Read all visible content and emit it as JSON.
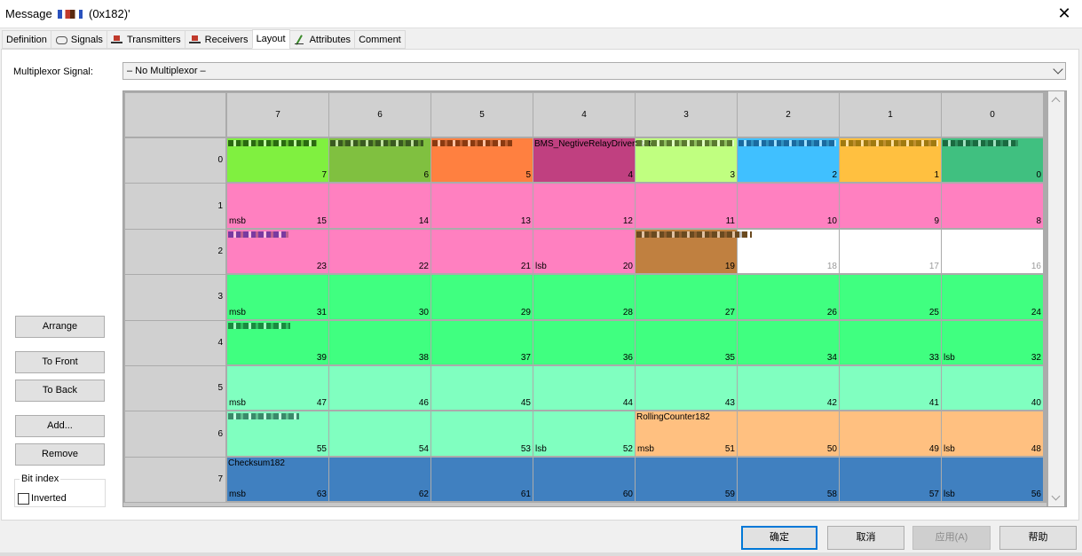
{
  "window": {
    "title_prefix": "Message ",
    "title_suffix": " (0x182)'"
  },
  "tabs": [
    {
      "label": "Definition",
      "icon": "none"
    },
    {
      "label": "Signals",
      "icon": "signals-icon"
    },
    {
      "label": "Transmitters",
      "icon": "ecu-icon"
    },
    {
      "label": "Receivers",
      "icon": "ecu-icon"
    },
    {
      "label": "Layout",
      "icon": "none"
    },
    {
      "label": "Attributes",
      "icon": "attributes-icon"
    },
    {
      "label": "Comment",
      "icon": "none"
    }
  ],
  "active_tab": "Layout",
  "multiplexor": {
    "label": "Multiplexor Signal:",
    "value": "– No Multiplexor –"
  },
  "side_buttons": {
    "arrange": "Arrange",
    "to_front": "To Front",
    "to_back": "To Back",
    "add": "Add...",
    "remove": "Remove"
  },
  "bit_index": {
    "legend": "Bit index",
    "inverted_label": "Inverted",
    "inverted": false
  },
  "layout": {
    "columns": [
      "7",
      "6",
      "5",
      "4",
      "3",
      "2",
      "1",
      "0"
    ],
    "rows": [
      "0",
      "1",
      "2",
      "3",
      "4",
      "5",
      "6",
      "7"
    ],
    "colors": {
      "lime": "#80f040",
      "olive": "#80c040",
      "orange": "#ff8040",
      "magenta": "#c04080",
      "lightlime": "#c0ff80",
      "sky": "#40c0ff",
      "amber": "#ffc040",
      "teal": "#40c080",
      "pink": "#ff80c0",
      "brown": "#c08040",
      "green": "#40ff80",
      "mint": "#80ffc0",
      "peach": "#ffc080",
      "blue": "#4080c0",
      "empty": "#ffffff"
    },
    "cells": [
      [
        "lime",
        "olive",
        "orange",
        "magenta",
        "lightlime",
        "sky",
        "amber",
        "teal"
      ],
      [
        "pink",
        "pink",
        "pink",
        "pink",
        "pink",
        "pink",
        "pink",
        "pink"
      ],
      [
        "pink",
        "pink",
        "pink",
        "pink",
        "brown",
        "empty",
        "empty",
        "empty"
      ],
      [
        "green",
        "green",
        "green",
        "green",
        "green",
        "green",
        "green",
        "green"
      ],
      [
        "green",
        "green",
        "green",
        "green",
        "green",
        "green",
        "green",
        "green"
      ],
      [
        "mint",
        "mint",
        "mint",
        "mint",
        "mint",
        "mint",
        "mint",
        "mint"
      ],
      [
        "mint",
        "mint",
        "mint",
        "mint",
        "peach",
        "peach",
        "peach",
        "peach"
      ],
      [
        "blue",
        "blue",
        "blue",
        "blue",
        "blue",
        "blue",
        "blue",
        "blue"
      ]
    ],
    "sub_labels": [
      {
        "row": 1,
        "col": 0,
        "text": "msb"
      },
      {
        "row": 2,
        "col": 3,
        "text": "lsb"
      },
      {
        "row": 3,
        "col": 0,
        "text": "msb"
      },
      {
        "row": 4,
        "col": 7,
        "text": "lsb"
      },
      {
        "row": 5,
        "col": 0,
        "text": "msb"
      },
      {
        "row": 6,
        "col": 3,
        "text": "lsb"
      },
      {
        "row": 6,
        "col": 4,
        "text": "msb"
      },
      {
        "row": 6,
        "col": 7,
        "text": "lsb"
      },
      {
        "row": 7,
        "col": 0,
        "text": "msb"
      },
      {
        "row": 7,
        "col": 7,
        "text": "lsb"
      }
    ],
    "signal_names": [
      {
        "row": 0,
        "col": 3,
        "text": "BMS_NegtiveRelayDriverState"
      },
      {
        "row": 6,
        "col": 4,
        "text": "RollingCounter182"
      },
      {
        "row": 7,
        "col": 0,
        "text": "Checksum182"
      }
    ]
  },
  "dialog_buttons": {
    "ok": "确定",
    "cancel": "取消",
    "apply": "应用(A)",
    "help": "帮助"
  }
}
